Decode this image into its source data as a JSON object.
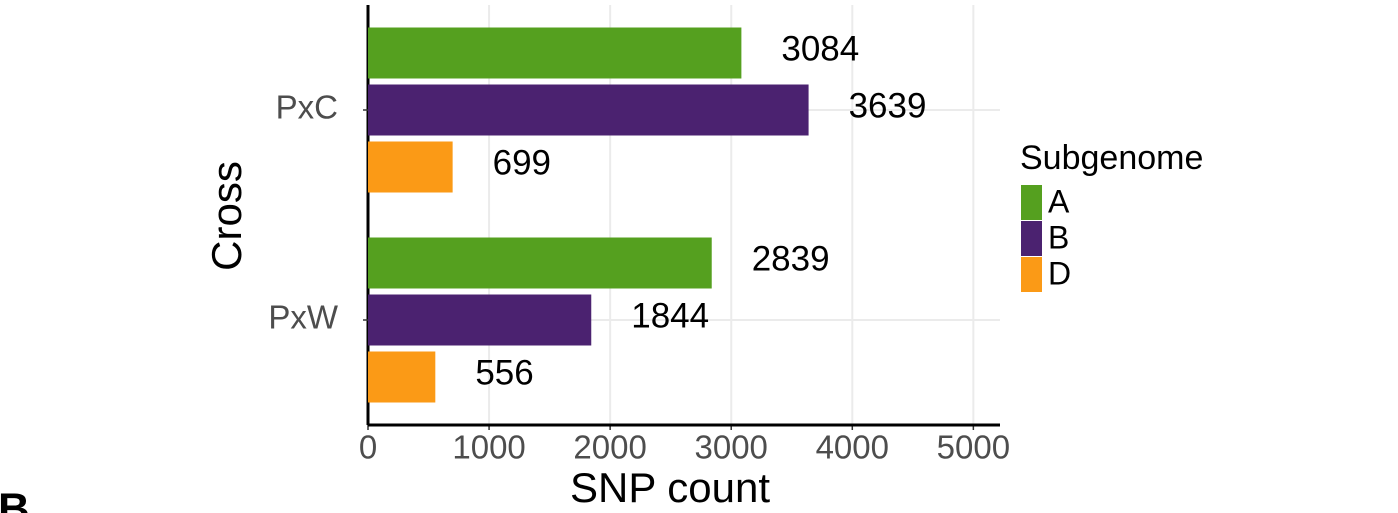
{
  "chart_data": {
    "type": "barh",
    "x_label": "SNP count",
    "y_label": "Cross",
    "categories": [
      "PxC",
      "PxW"
    ],
    "series": [
      {
        "name": "A",
        "color": "#55a01f",
        "values": [
          3084,
          2839
        ]
      },
      {
        "name": "B",
        "color": "#4b2270",
        "values": [
          3639,
          1844
        ]
      },
      {
        "name": "D",
        "color": "#fb9a16",
        "values": [
          699,
          556
        ]
      }
    ],
    "legend_title": "Subgenome",
    "legend": "right",
    "xlim": [
      0,
      5220
    ],
    "xticks": [
      0,
      1000,
      2000,
      3000,
      4000,
      5000
    ],
    "grid": true
  },
  "panel_label": "B"
}
